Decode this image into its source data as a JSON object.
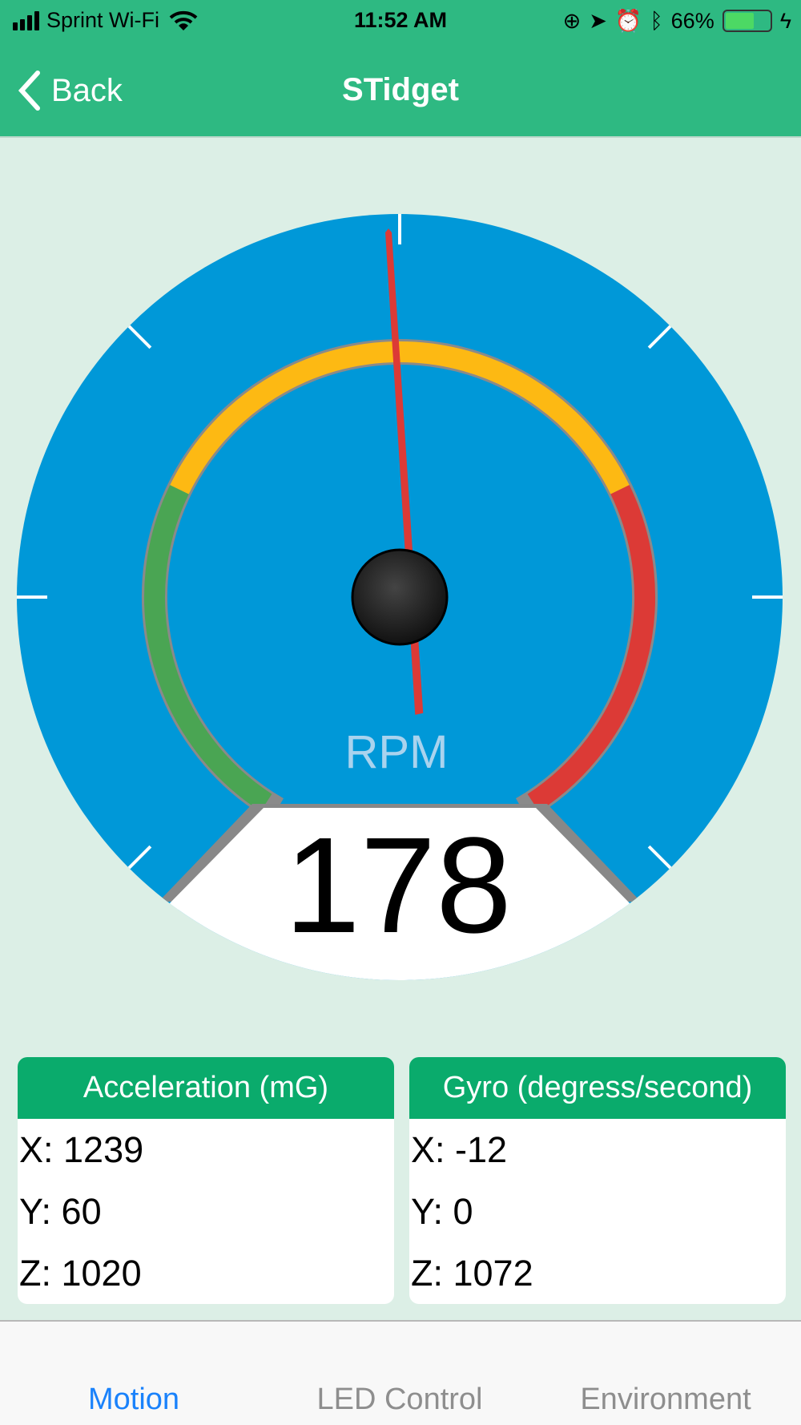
{
  "status_bar": {
    "carrier": "Sprint Wi-Fi",
    "time": "11:52 AM",
    "battery": "66%",
    "battery_level": 0.66,
    "icons": [
      "signal-icon",
      "wifi-icon",
      "rotation-lock-icon",
      "location-icon",
      "alarm-icon",
      "bluetooth-icon",
      "battery-icon",
      "charging-icon"
    ]
  },
  "nav": {
    "back_label": "Back",
    "title": "STidget"
  },
  "gauge": {
    "unit": "RPM",
    "value": "178",
    "colors": {
      "face": "#0098d8",
      "green": "#4aa553",
      "yellow": "#fdb913",
      "red": "#dc3a36",
      "needle": "#dc3a36"
    }
  },
  "cards": [
    {
      "title": "Acceleration (mG)",
      "rows": [
        "X: 1239",
        "Y: 60",
        "Z: 1020"
      ]
    },
    {
      "title": "Gyro (degress/second)",
      "rows": [
        "X: -12",
        "Y: 0",
        "Z: 1072"
      ]
    }
  ],
  "tabs": [
    {
      "label": "Motion",
      "active": true
    },
    {
      "label": "LED Control",
      "active": false
    },
    {
      "label": "Environment",
      "active": false
    }
  ],
  "colors": {
    "nav": "#2eb982",
    "header": "#0aab6c",
    "active_tab": "#1a82fb"
  }
}
